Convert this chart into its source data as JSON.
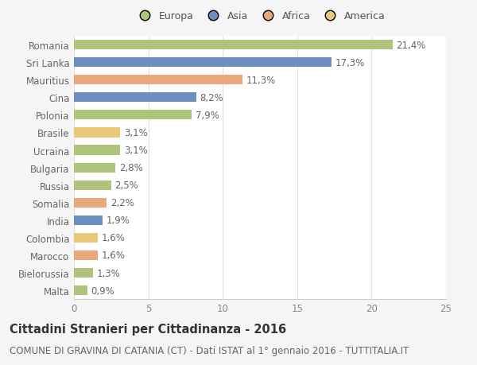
{
  "categories": [
    "Romania",
    "Sri Lanka",
    "Mauritius",
    "Cina",
    "Polonia",
    "Brasile",
    "Ucraina",
    "Bulgaria",
    "Russia",
    "Somalia",
    "India",
    "Colombia",
    "Marocco",
    "Bielorussia",
    "Malta"
  ],
  "values": [
    21.4,
    17.3,
    11.3,
    8.2,
    7.9,
    3.1,
    3.1,
    2.8,
    2.5,
    2.2,
    1.9,
    1.6,
    1.6,
    1.3,
    0.9
  ],
  "labels": [
    "21,4%",
    "17,3%",
    "11,3%",
    "8,2%",
    "7,9%",
    "3,1%",
    "3,1%",
    "2,8%",
    "2,5%",
    "2,2%",
    "1,9%",
    "1,6%",
    "1,6%",
    "1,3%",
    "0,9%"
  ],
  "colors": [
    "#adc47a",
    "#6b8fbf",
    "#e8a87c",
    "#6b8fbf",
    "#adc47a",
    "#e8c97a",
    "#adc47a",
    "#adc47a",
    "#adc47a",
    "#e8a87c",
    "#6b8fbf",
    "#e8c97a",
    "#e8a87c",
    "#adc47a",
    "#adc47a"
  ],
  "legend_labels": [
    "Europa",
    "Asia",
    "Africa",
    "America"
  ],
  "legend_colors": [
    "#adc47a",
    "#6b8fbf",
    "#e8a87c",
    "#e8c97a"
  ],
  "xlim": [
    0,
    25
  ],
  "xticks": [
    0,
    5,
    10,
    15,
    20,
    25
  ],
  "title": "Cittadini Stranieri per Cittadinanza - 2016",
  "subtitle": "COMUNE DI GRAVINA DI CATANIA (CT) - Dati ISTAT al 1° gennaio 2016 - TUTTITALIA.IT",
  "background_color": "#f5f5f5",
  "plot_bg_color": "#ffffff",
  "grid_color": "#e0e0e0",
  "bar_height": 0.55,
  "title_fontsize": 10.5,
  "subtitle_fontsize": 8.5,
  "label_fontsize": 8.5,
  "tick_fontsize": 8.5,
  "legend_fontsize": 9
}
